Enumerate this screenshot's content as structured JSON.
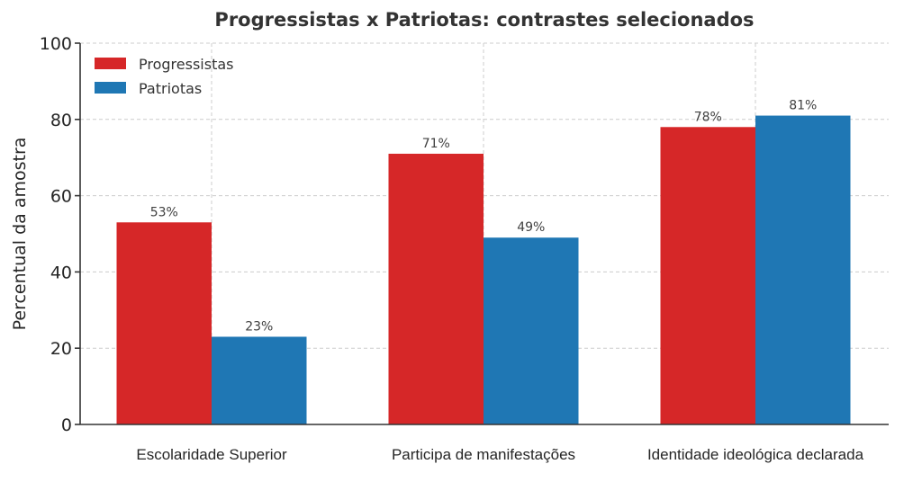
{
  "chart_data": {
    "type": "bar",
    "title": "Progressistas x Patriotas: contrastes selecionados",
    "xlabel": "",
    "ylabel": "Percentual da amostra",
    "ylim": [
      0,
      100
    ],
    "yticks": [
      0,
      20,
      40,
      60,
      80,
      100
    ],
    "ytick_labels": [
      "0",
      "20",
      "40",
      "60",
      "80",
      "100"
    ],
    "categories": [
      "Escolaridade Superior",
      "Participa de manifestações",
      "Identidade ideológica declarada"
    ],
    "series": [
      {
        "name": "Progressistas",
        "color": "#d62728",
        "values": [
          53,
          71,
          78
        ],
        "labels": [
          "53%",
          "71%",
          "78%"
        ]
      },
      {
        "name": "Patriotas",
        "color": "#1f77b4",
        "values": [
          23,
          49,
          81
        ],
        "labels": [
          "23%",
          "49%",
          "81%"
        ]
      }
    ],
    "grid": true,
    "legend": {
      "placement": "top-left"
    }
  }
}
